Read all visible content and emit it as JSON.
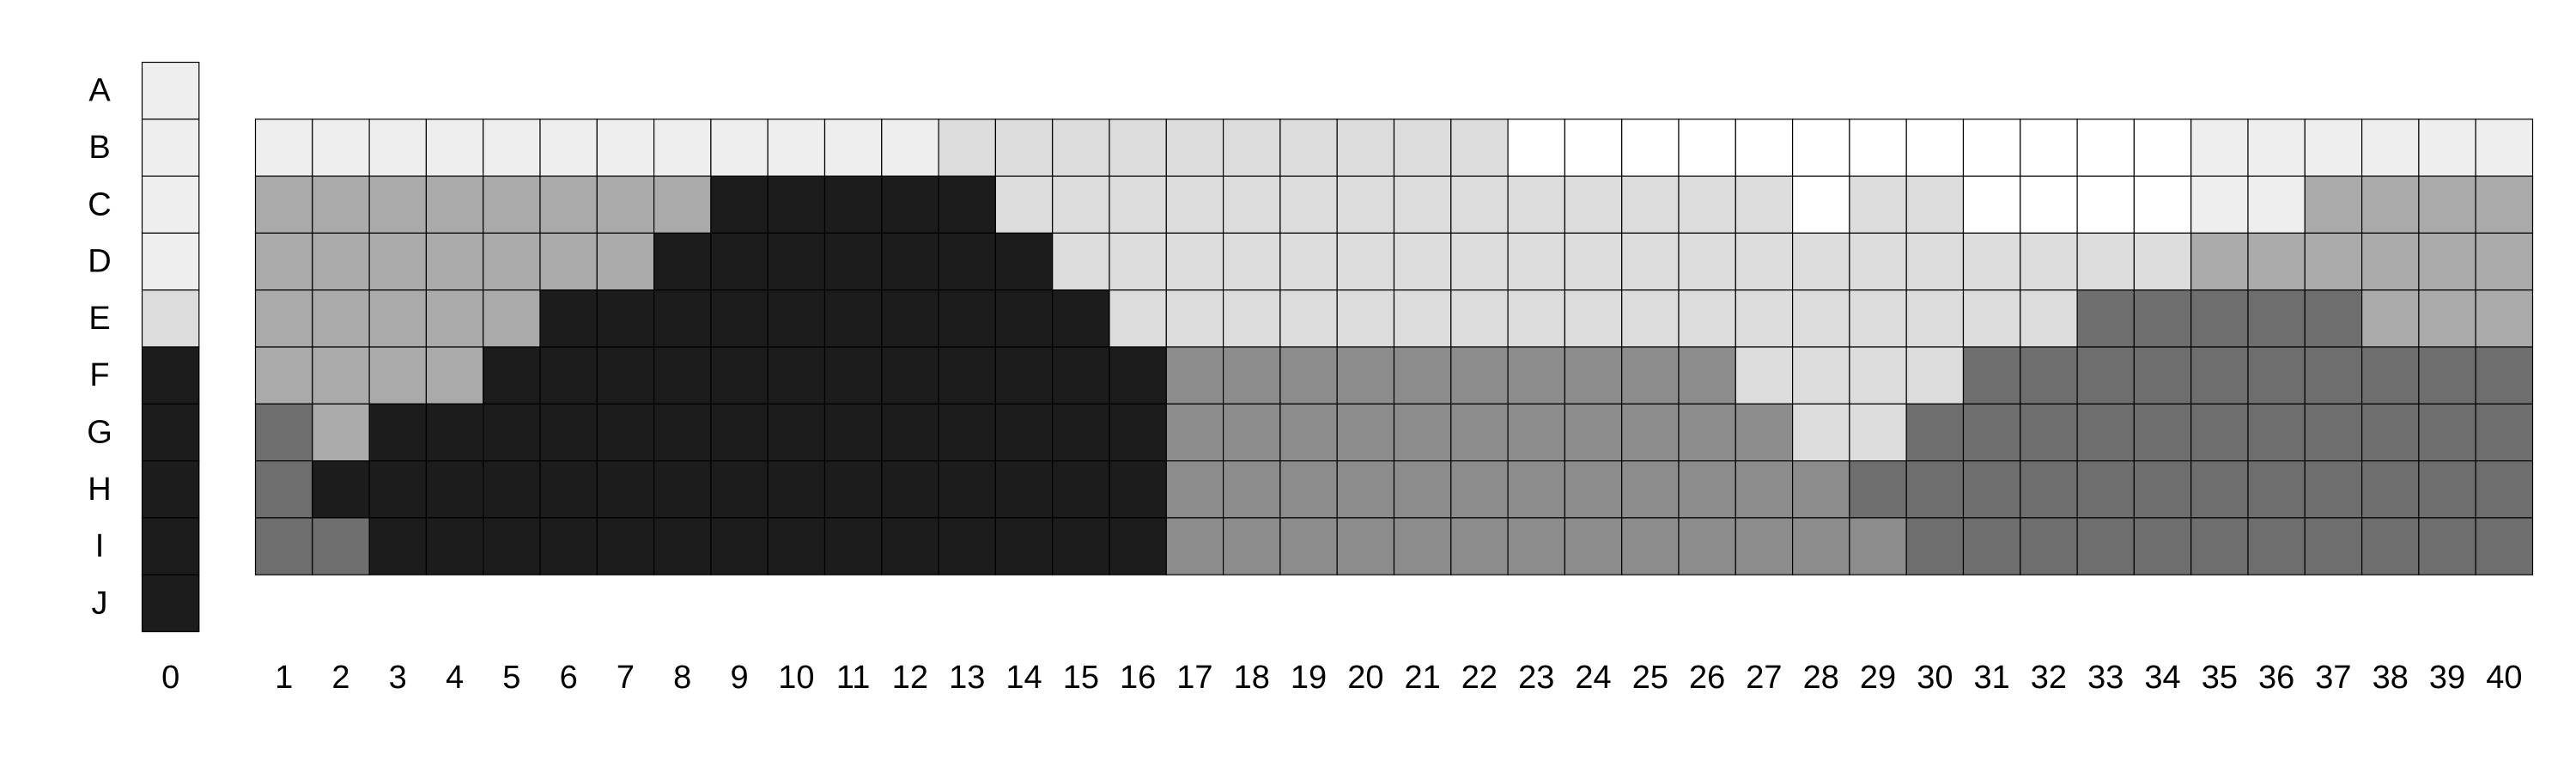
{
  "chart_data": {
    "type": "heatmap",
    "title": "",
    "xlabel": "",
    "ylabel": "",
    "rows": [
      "A",
      "B",
      "C",
      "D",
      "E",
      "F",
      "G",
      "H",
      "I",
      "J"
    ],
    "column_0": {
      "label": "0",
      "rows": [
        "A",
        "B",
        "C",
        "D",
        "E",
        "F",
        "G",
        "H",
        "I",
        "J"
      ],
      "values": [
        1,
        1,
        1,
        1,
        2,
        6,
        6,
        6,
        6,
        6
      ]
    },
    "main_grid": {
      "columns": [
        "1",
        "2",
        "3",
        "4",
        "5",
        "6",
        "7",
        "8",
        "9",
        "10",
        "11",
        "12",
        "13",
        "14",
        "15",
        "16",
        "17",
        "18",
        "19",
        "20",
        "21",
        "22",
        "23",
        "24",
        "25",
        "26",
        "27",
        "28",
        "29",
        "30",
        "31",
        "32",
        "33",
        "34",
        "35",
        "36",
        "37",
        "38",
        "39",
        "40"
      ],
      "rows": [
        "B",
        "C",
        "D",
        "E",
        "F",
        "G",
        "H",
        "I"
      ],
      "values": [
        [
          1,
          1,
          1,
          1,
          1,
          1,
          1,
          1,
          1,
          1,
          1,
          1,
          2,
          2,
          2,
          2,
          2,
          2,
          2,
          2,
          2,
          2,
          0,
          0,
          0,
          0,
          0,
          0,
          0,
          0,
          0,
          0,
          0,
          0,
          1,
          1,
          1,
          1,
          1,
          1
        ],
        [
          3,
          3,
          3,
          3,
          3,
          3,
          3,
          3,
          6,
          6,
          6,
          6,
          6,
          2,
          2,
          2,
          2,
          2,
          2,
          2,
          2,
          2,
          2,
          2,
          2,
          2,
          2,
          0,
          2,
          2,
          0,
          0,
          0,
          0,
          1,
          1,
          3,
          3,
          3,
          3
        ],
        [
          3,
          3,
          3,
          3,
          3,
          3,
          3,
          6,
          6,
          6,
          6,
          6,
          6,
          6,
          2,
          2,
          2,
          2,
          2,
          2,
          2,
          2,
          2,
          2,
          2,
          2,
          2,
          2,
          2,
          2,
          2,
          2,
          2,
          2,
          3,
          3,
          3,
          3,
          3,
          3
        ],
        [
          3,
          3,
          3,
          3,
          3,
          6,
          6,
          6,
          6,
          6,
          6,
          6,
          6,
          6,
          6,
          2,
          2,
          2,
          2,
          2,
          2,
          2,
          2,
          2,
          2,
          2,
          2,
          2,
          2,
          2,
          2,
          2,
          5,
          5,
          5,
          5,
          5,
          3,
          3,
          3
        ],
        [
          3,
          3,
          3,
          3,
          6,
          6,
          6,
          6,
          6,
          6,
          6,
          6,
          6,
          6,
          6,
          6,
          4,
          4,
          4,
          4,
          4,
          4,
          4,
          4,
          4,
          4,
          2,
          2,
          2,
          2,
          5,
          5,
          5,
          5,
          5,
          5,
          5,
          5,
          5,
          5
        ],
        [
          5,
          3,
          6,
          6,
          6,
          6,
          6,
          6,
          6,
          6,
          6,
          6,
          6,
          6,
          6,
          6,
          4,
          4,
          4,
          4,
          4,
          4,
          4,
          4,
          4,
          4,
          4,
          2,
          2,
          5,
          5,
          5,
          5,
          5,
          5,
          5,
          5,
          5,
          5,
          5
        ],
        [
          5,
          6,
          6,
          6,
          6,
          6,
          6,
          6,
          6,
          6,
          6,
          6,
          6,
          6,
          6,
          6,
          4,
          4,
          4,
          4,
          4,
          4,
          4,
          4,
          4,
          4,
          4,
          4,
          5,
          5,
          5,
          5,
          5,
          5,
          5,
          5,
          5,
          5,
          5,
          5
        ],
        [
          5,
          5,
          6,
          6,
          6,
          6,
          6,
          6,
          6,
          6,
          6,
          6,
          6,
          6,
          6,
          6,
          4,
          4,
          4,
          4,
          4,
          4,
          4,
          4,
          4,
          4,
          4,
          4,
          4,
          5,
          5,
          5,
          5,
          5,
          5,
          5,
          5,
          5,
          5,
          5
        ]
      ]
    },
    "palette": [
      "#ffffff",
      "#eeeeee",
      "#dcdcdc",
      "#aaaaaa",
      "#8c8c8c",
      "#6e6e6e",
      "#1c1c1c"
    ],
    "grid_line_color": "#000000"
  }
}
